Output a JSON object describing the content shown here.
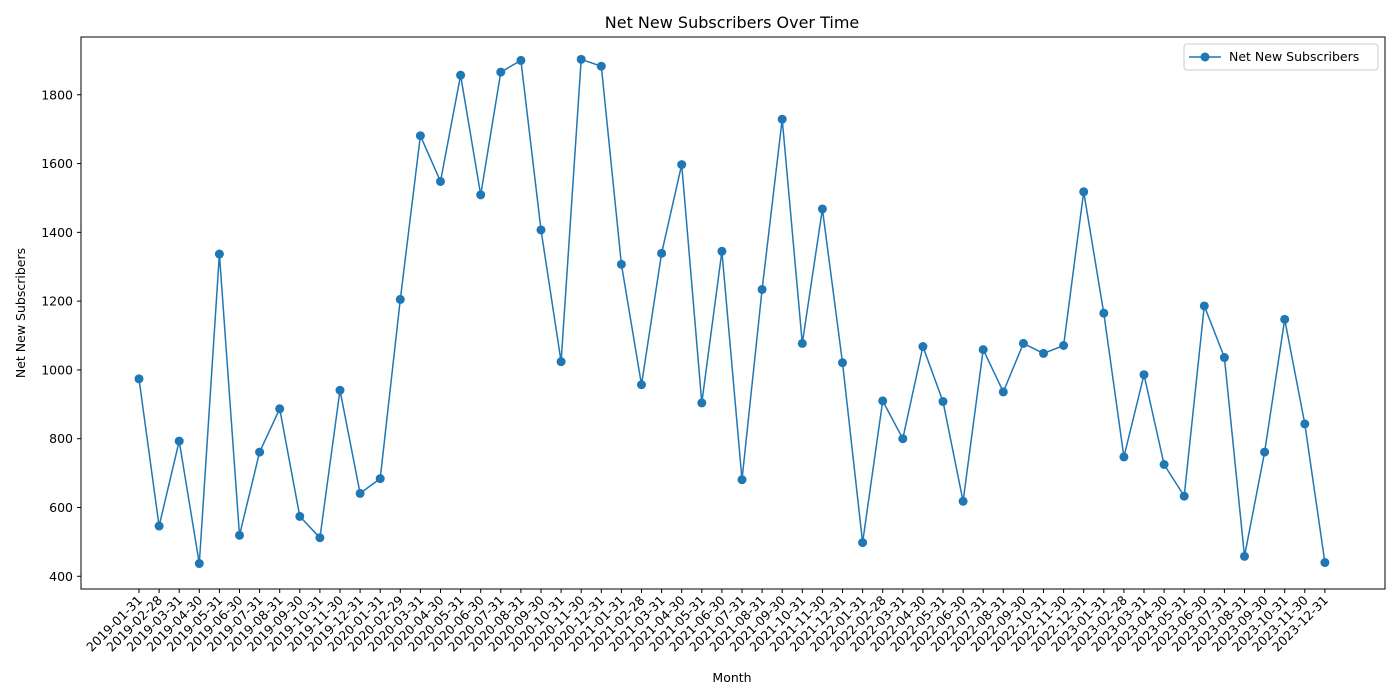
{
  "chart_data": {
    "type": "line",
    "title": "Net New Subscribers Over Time",
    "xlabel": "Month",
    "ylabel": "Net New Subscribers",
    "ylim": [
      363,
      1968
    ],
    "yticks": [
      400,
      600,
      800,
      1000,
      1200,
      1400,
      1600,
      1800
    ],
    "grid": false,
    "legend_position": "top-right",
    "x": [
      "2019-01-31",
      "2019-02-28",
      "2019-03-31",
      "2019-04-30",
      "2019-05-31",
      "2019-06-30",
      "2019-07-31",
      "2019-08-31",
      "2019-09-30",
      "2019-10-31",
      "2019-11-30",
      "2019-12-31",
      "2020-01-31",
      "2020-02-29",
      "2020-03-31",
      "2020-04-30",
      "2020-05-31",
      "2020-06-30",
      "2020-07-31",
      "2020-08-31",
      "2020-09-30",
      "2020-10-31",
      "2020-11-30",
      "2020-12-31",
      "2021-01-31",
      "2021-02-28",
      "2021-03-31",
      "2021-04-30",
      "2021-05-31",
      "2021-06-30",
      "2021-07-31",
      "2021-08-31",
      "2021-09-30",
      "2021-10-31",
      "2021-11-30",
      "2021-12-31",
      "2022-01-31",
      "2022-02-28",
      "2022-03-31",
      "2022-04-30",
      "2022-05-31",
      "2022-06-30",
      "2022-07-31",
      "2022-08-31",
      "2022-09-30",
      "2022-10-31",
      "2022-11-30",
      "2022-12-31",
      "2023-01-31",
      "2023-02-28",
      "2023-03-31",
      "2023-04-30",
      "2023-05-31",
      "2023-06-30",
      "2023-07-31",
      "2023-08-31",
      "2023-09-30",
      "2023-10-31",
      "2023-11-30",
      "2023-12-31"
    ],
    "series": [
      {
        "name": "Net New Subscribers",
        "color": "#1f77b4",
        "marker": "circle",
        "values": [
          974,
          546,
          793,
          437,
          1337,
          519,
          761,
          887,
          574,
          512,
          941,
          641,
          684,
          1205,
          1681,
          1548,
          1857,
          1509,
          1866,
          1900,
          1407,
          1024,
          1903,
          1883,
          1307,
          957,
          1339,
          1597,
          904,
          1345,
          681,
          1234,
          1729,
          1077,
          1468,
          1021,
          498,
          910,
          800,
          1068,
          908,
          618,
          1059,
          936,
          1077,
          1048,
          1071,
          1518,
          1165,
          747,
          986,
          725,
          633,
          1186,
          1036,
          458,
          761,
          1147,
          843,
          440
        ]
      }
    ]
  }
}
